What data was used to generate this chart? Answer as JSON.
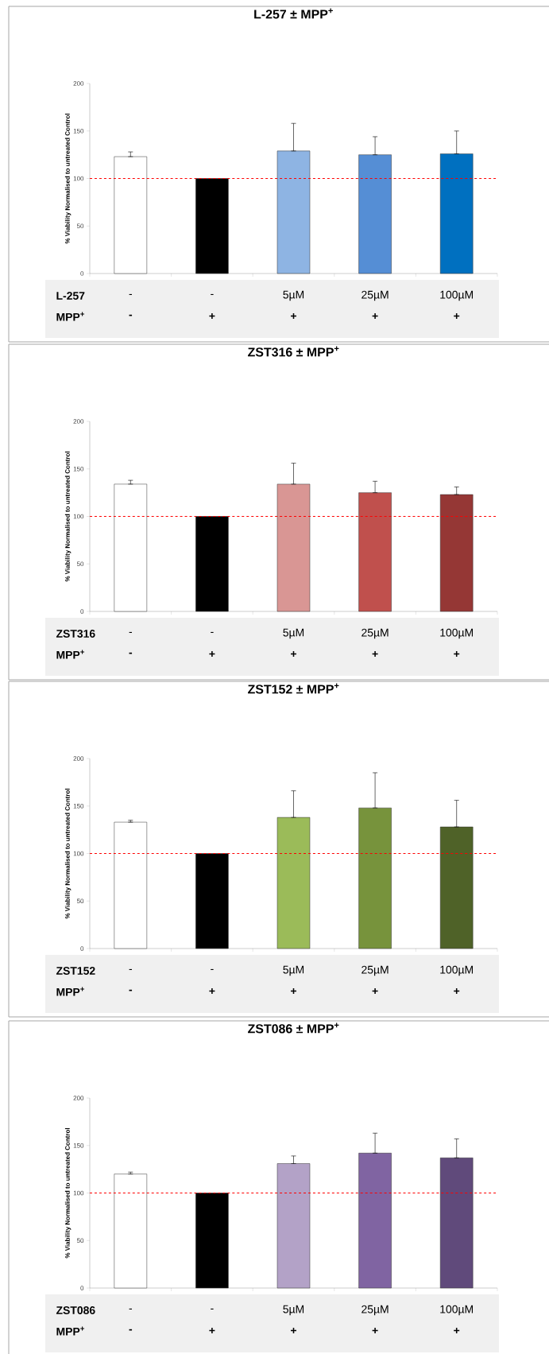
{
  "chart_data": [
    {
      "type": "bar",
      "title": "L-257 ± MPP$^{+}$",
      "ylabel": "% Viability Normalised to untreated Control",
      "categories": [
        "-",
        "-",
        "5µM",
        "25µM",
        "100µM"
      ],
      "values": [
        123,
        100,
        129,
        125,
        126
      ],
      "colors": [
        "#ffffff",
        "#000000",
        "#8eb4e3",
        "#558ed5",
        "#0070c0"
      ],
      "errors": [
        [
          123,
          128
        ],
        null,
        [
          129,
          158
        ],
        [
          125,
          144
        ],
        [
          126,
          150
        ]
      ],
      "ylim": [
        0,
        200
      ],
      "yticks": [
        0,
        50,
        100,
        150,
        200
      ],
      "ref_lines": [
        {
          "axis": "y",
          "value": 100,
          "color": "#ff0000",
          "line_style": "dashed"
        }
      ],
      "annotations": [
        "L-257",
        "MPP$^{+}$",
        "-",
        "+",
        "+",
        "+",
        "+"
      ]
    },
    {
      "type": "bar",
      "title": "ZST316 ± MPP$^{+}$",
      "ylabel": "% Viability Normalised to untreated Control",
      "categories": [
        "-",
        "-",
        "5µM",
        "25µM",
        "100µM"
      ],
      "values": [
        134,
        100,
        134,
        125,
        123
      ],
      "colors": [
        "#ffffff",
        "#000000",
        "#d99694",
        "#c0504d",
        "#953735"
      ],
      "errors": [
        [
          134,
          138
        ],
        null,
        [
          134,
          156
        ],
        [
          125,
          137
        ],
        [
          123,
          131
        ]
      ],
      "ylim": [
        0,
        200
      ],
      "yticks": [
        0,
        50,
        100,
        150,
        200
      ],
      "ref_lines": [
        {
          "axis": "y",
          "value": 100,
          "color": "#ff0000",
          "line_style": "dashed"
        }
      ],
      "annotations": [
        "ZST316",
        "MPP$^{+}$",
        "-",
        "+",
        "+",
        "+",
        "+"
      ]
    },
    {
      "type": "bar",
      "title": "ZST152 ± MPP$^{+}$",
      "ylabel": "% Viability Normalised to untreated Control",
      "categories": [
        "-",
        "-",
        "5µM",
        "25µM",
        "100µM"
      ],
      "values": [
        133,
        100,
        138,
        148,
        128
      ],
      "colors": [
        "#ffffff",
        "#000000",
        "#9bbb59",
        "#77933c",
        "#4f6228"
      ],
      "errors": [
        [
          133,
          135
        ],
        null,
        [
          138,
          166
        ],
        [
          148,
          185
        ],
        [
          128,
          156
        ]
      ],
      "ylim": [
        0,
        200
      ],
      "yticks": [
        0,
        50,
        100,
        150,
        200
      ],
      "ref_lines": [
        {
          "axis": "y",
          "value": 100,
          "color": "#ff0000",
          "line_style": "dashed"
        }
      ],
      "annotations": [
        "ZST152",
        "MPP$^{+}$",
        "-",
        "+",
        "+",
        "+",
        "+"
      ]
    },
    {
      "type": "bar",
      "title": "ZST086 ± MPP$^{+}$",
      "ylabel": "% Viability Normalised to untreated Control",
      "categories": [
        "-",
        "-",
        "5µM",
        "25µM",
        "100µM"
      ],
      "values": [
        120,
        100,
        131,
        142,
        137
      ],
      "colors": [
        "#ffffff",
        "#000000",
        "#b3a2c7",
        "#8064a2",
        "#604a7b"
      ],
      "errors": [
        [
          120,
          122
        ],
        null,
        [
          131,
          139
        ],
        [
          142,
          163
        ],
        [
          137,
          157
        ]
      ],
      "ylim": [
        0,
        200
      ],
      "yticks": [
        0,
        50,
        100,
        150,
        200
      ],
      "ref_lines": [
        {
          "axis": "y",
          "value": 100,
          "color": "#ff0000",
          "line_style": "dashed"
        }
      ],
      "annotations": [
        "ZST086",
        "MPP$^{+}$",
        "-",
        "+",
        "+",
        "+",
        "+"
      ]
    }
  ]
}
